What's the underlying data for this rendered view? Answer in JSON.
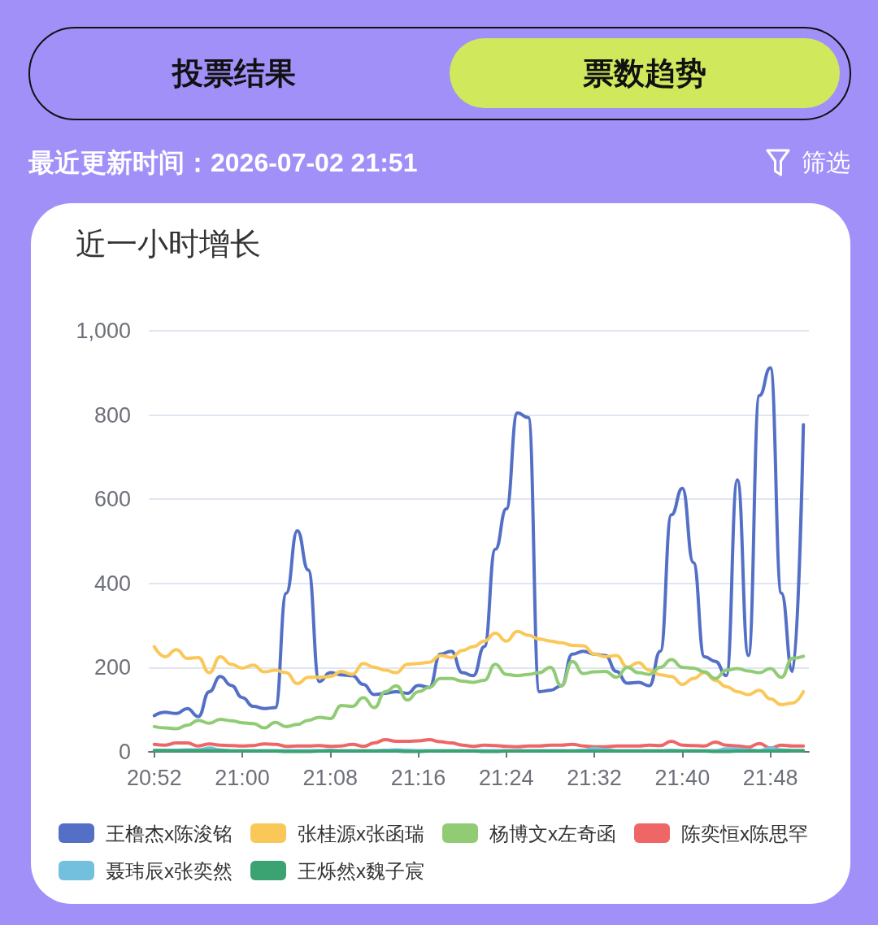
{
  "chart_data": {
    "type": "line",
    "title": "近一小时增长",
    "annotations": [
      "投票结果",
      "票数趋势",
      "最近更新时间：2026-07-02 21:51",
      "筛选"
    ],
    "categories": [
      "20:52",
      null,
      null,
      null,
      null,
      null,
      null,
      null,
      "21:00",
      null,
      null,
      null,
      null,
      null,
      null,
      null,
      "21:08",
      null,
      null,
      null,
      null,
      null,
      null,
      null,
      "21:16",
      null,
      null,
      null,
      null,
      null,
      null,
      null,
      "21:24",
      null,
      null,
      null,
      null,
      null,
      null,
      null,
      "21:32",
      null,
      null,
      null,
      null,
      null,
      null,
      null,
      "21:40",
      null,
      null,
      null,
      null,
      null,
      null,
      null,
      "21:48",
      null,
      null,
      null
    ],
    "ylim": [
      0,
      1000
    ],
    "yticks": [
      0,
      200,
      400,
      600,
      800,
      {
        "value": 1000,
        "label": "1,000"
      }
    ],
    "grid": "y",
    "legend": "bottom",
    "series": [
      {
        "name": "王橹杰x陈浚铭",
        "color": "#5470c6",
        "values": [
          86,
          94,
          91,
          103,
          84,
          143,
          179,
          158,
          129,
          108,
          103,
          105,
          377,
          525,
          432,
          167,
          188,
          183,
          181,
          160,
          136,
          139,
          143,
          139,
          158,
          153,
          232,
          239,
          188,
          181,
          250,
          481,
          577,
          805,
          794,
          143,
          146,
          157,
          232,
          239,
          232,
          229,
          191,
          163,
          165,
          157,
          239,
          563,
          626,
          450,
          226,
          215,
          181,
          646,
          229,
          846,
          912,
          377,
          191,
          777
        ]
      },
      {
        "name": "张桂源x张函瑞",
        "color": "#fac858",
        "values": [
          250,
          226,
          243,
          222,
          224,
          188,
          226,
          208,
          199,
          206,
          190,
          194,
          188,
          162,
          177,
          177,
          179,
          191,
          184,
          210,
          201,
          194,
          188,
          208,
          210,
          213,
          229,
          224,
          241,
          250,
          263,
          282,
          263,
          286,
          277,
          268,
          263,
          259,
          253,
          252,
          232,
          226,
          229,
          201,
          212,
          194,
          183,
          179,
          160,
          174,
          188,
          170,
          155,
          143,
          136,
          146,
          126,
          112,
          116,
          143
        ]
      },
      {
        "name": "杨博文x左奇函",
        "color": "#91cc75",
        "values": [
          60,
          57,
          55,
          63,
          75,
          68,
          77,
          74,
          69,
          67,
          57,
          70,
          60,
          65,
          75,
          82,
          79,
          110,
          108,
          129,
          105,
          143,
          157,
          123,
          143,
          153,
          174,
          174,
          168,
          165,
          170,
          208,
          184,
          181,
          184,
          188,
          201,
          157,
          215,
          186,
          190,
          191,
          177,
          201,
          188,
          184,
          201,
          219,
          201,
          199,
          190,
          174,
          194,
          198,
          192,
          188,
          198,
          177,
          222,
          227
        ]
      },
      {
        "name": "陈奕恒x陈思罕",
        "color": "#ee6666",
        "values": [
          18,
          16,
          21,
          21,
          14,
          19,
          16,
          15,
          14,
          15,
          19,
          18,
          13,
          14,
          14,
          15,
          13,
          14,
          18,
          13,
          21,
          29,
          25,
          25,
          26,
          29,
          24,
          21,
          16,
          13,
          16,
          15,
          13,
          12,
          14,
          14,
          16,
          16,
          18,
          14,
          12,
          12,
          14,
          14,
          14,
          16,
          15,
          25,
          16,
          15,
          14,
          23,
          16,
          14,
          11,
          20,
          9,
          16,
          14,
          14
        ]
      },
      {
        "name": "聂玮辰x张奕然",
        "color": "#73c0de",
        "values": [
          4,
          4,
          4,
          5,
          5,
          9,
          5,
          3,
          3,
          3,
          3,
          3,
          3,
          3,
          3,
          3,
          4,
          3,
          3,
          3,
          3,
          4,
          5,
          4,
          3,
          3,
          3,
          3,
          3,
          3,
          3,
          3,
          3,
          3,
          3,
          3,
          3,
          3,
          3,
          4,
          8,
          6,
          3,
          3,
          3,
          3,
          3,
          4,
          3,
          3,
          3,
          3,
          7,
          7,
          5,
          3,
          9,
          5,
          3,
          3
        ]
      },
      {
        "name": "王烁然x魏子宸",
        "color": "#3ba272",
        "values": [
          3,
          3,
          3,
          3,
          3,
          3,
          3,
          2,
          2,
          2,
          2,
          2,
          1,
          1,
          1,
          2,
          2,
          2,
          2,
          2,
          2,
          2,
          2,
          1,
          1,
          2,
          2,
          2,
          2,
          2,
          1,
          1,
          2,
          2,
          2,
          2,
          2,
          2,
          2,
          2,
          2,
          2,
          2,
          2,
          2,
          2,
          2,
          2,
          2,
          2,
          2,
          1,
          1,
          2,
          2,
          2,
          2,
          3,
          3,
          3
        ]
      }
    ]
  }
}
